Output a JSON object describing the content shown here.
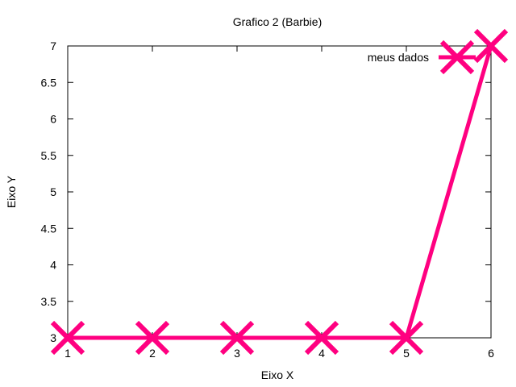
{
  "chart_data": {
    "type": "line",
    "title": "Grafico 2 (Barbie)",
    "xlabel": "Eixo X",
    "ylabel": "Eixo Y",
    "xlim": [
      1,
      6
    ],
    "ylim": [
      3,
      7
    ],
    "xticks": [
      1,
      2,
      3,
      4,
      5,
      6
    ],
    "yticks": [
      3,
      3.5,
      4,
      4.5,
      5,
      5.5,
      6,
      6.5,
      7
    ],
    "ytick_labels": [
      "3",
      "3.5",
      "4",
      "4.5",
      "5",
      "5.5",
      "6",
      "6.5",
      "7"
    ],
    "grid": false,
    "legend_position": "top-right",
    "series": [
      {
        "name": "meus dados",
        "color": "#ff0080",
        "marker": "x-cross",
        "x": [
          1,
          2,
          3,
          4,
          5,
          6
        ],
        "y": [
          3,
          3,
          3,
          3,
          3,
          7
        ]
      }
    ]
  }
}
